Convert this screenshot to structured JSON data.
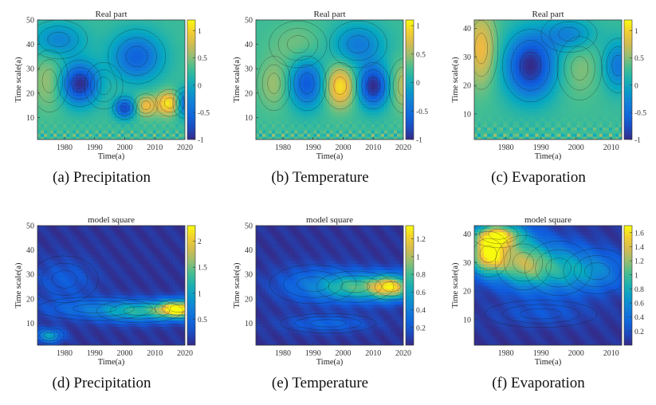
{
  "chart_data": [
    {
      "type": "heatmap",
      "title": "Real part",
      "xlabel": "Time(a)",
      "ylabel": "Time scale(a)",
      "caption": "(a) Precipitation",
      "xlim": [
        1971,
        2020
      ],
      "ylim": [
        1,
        50
      ],
      "xticks": [
        "1980",
        "1990",
        "2000",
        "2010",
        "2020"
      ],
      "yticks": [
        "10",
        "20",
        "30",
        "40",
        "50"
      ],
      "colorbar": {
        "min": -1,
        "max": 1.2,
        "ticks": [
          "-1",
          "-0.5",
          "0",
          "0.5",
          "1"
        ]
      },
      "features": [
        {
          "x": 1985,
          "y": 24,
          "value": -1.0,
          "sx": 4.5,
          "sy": 6
        },
        {
          "x": 1975,
          "y": 25,
          "value": 0.6,
          "sx": 4,
          "sy": 8
        },
        {
          "x": 1993,
          "y": 23,
          "value": 0.3,
          "sx": 4,
          "sy": 6
        },
        {
          "x": 2000,
          "y": 14,
          "value": -0.8,
          "sx": 2.5,
          "sy": 3
        },
        {
          "x": 2007,
          "y": 15,
          "value": 0.9,
          "sx": 2.5,
          "sy": 3
        },
        {
          "x": 2015,
          "y": 16,
          "value": 1.2,
          "sx": 3,
          "sy": 3.5
        },
        {
          "x": 2020,
          "y": 16,
          "value": -0.7,
          "sx": 2.5,
          "sy": 4
        },
        {
          "x": 2004,
          "y": 35,
          "value": -0.6,
          "sx": 6,
          "sy": 7
        },
        {
          "x": 1978,
          "y": 42,
          "value": -0.3,
          "sx": 6,
          "sy": 5
        }
      ]
    },
    {
      "type": "heatmap",
      "title": "Real part",
      "xlabel": "Time(a)",
      "ylabel": "Time scale(a)",
      "caption": "(b) Temperature",
      "xlim": [
        1971,
        2020
      ],
      "ylim": [
        1,
        50
      ],
      "xticks": [
        "1980",
        "1990",
        "2000",
        "2010",
        "2020"
      ],
      "yticks": [
        "10",
        "20",
        "30",
        "40",
        "50"
      ],
      "colorbar": {
        "min": -1,
        "max": 1.1,
        "ticks": [
          "-1",
          "-0.5",
          "0",
          "0.5",
          "1"
        ]
      },
      "features": [
        {
          "x": 2010,
          "y": 23,
          "value": -1.0,
          "sx": 3.5,
          "sy": 6
        },
        {
          "x": 1999,
          "y": 23,
          "value": 1.0,
          "sx": 3.5,
          "sy": 6
        },
        {
          "x": 1988,
          "y": 24,
          "value": -0.7,
          "sx": 4,
          "sy": 7
        },
        {
          "x": 1977,
          "y": 24,
          "value": 0.5,
          "sx": 3.5,
          "sy": 7
        },
        {
          "x": 2020,
          "y": 23,
          "value": 0.6,
          "sx": 3,
          "sy": 7
        },
        {
          "x": 2005,
          "y": 40,
          "value": -0.4,
          "sx": 6,
          "sy": 6
        },
        {
          "x": 1985,
          "y": 40,
          "value": 0.4,
          "sx": 6,
          "sy": 6
        }
      ]
    },
    {
      "type": "heatmap",
      "title": "Real part",
      "xlabel": "Time(a)",
      "ylabel": "Time scale(a)",
      "caption": "(c) Evaporation",
      "xlim": [
        1971,
        2013
      ],
      "ylim": [
        1,
        43
      ],
      "xticks": [
        "1980",
        "1990",
        "2000",
        "2010"
      ],
      "yticks": [
        "10",
        "20",
        "30",
        "40"
      ],
      "colorbar": {
        "min": -1,
        "max": 1.2,
        "ticks": [
          "-1",
          "-0.5",
          "0",
          "0.5",
          "1"
        ]
      },
      "features": [
        {
          "x": 1987,
          "y": 27,
          "value": -1.0,
          "sx": 5,
          "sy": 8
        },
        {
          "x": 1973,
          "y": 33,
          "value": 0.9,
          "sx": 3,
          "sy": 9
        },
        {
          "x": 2001,
          "y": 26,
          "value": 0.5,
          "sx": 4,
          "sy": 7
        },
        {
          "x": 2012,
          "y": 27,
          "value": -0.4,
          "sx": 3,
          "sy": 6
        },
        {
          "x": 1998,
          "y": 38,
          "value": -0.3,
          "sx": 5,
          "sy": 4
        }
      ]
    },
    {
      "type": "heatmap",
      "title": "model square",
      "xlabel": "Time(a)",
      "ylabel": "Time scale(a)",
      "caption": "(d) Precipitation",
      "xlim": [
        1971,
        2020
      ],
      "ylim": [
        1,
        50
      ],
      "xticks": [
        "1980",
        "1990",
        "2000",
        "2010",
        "2020"
      ],
      "yticks": [
        "10",
        "20",
        "30",
        "40",
        "50"
      ],
      "colorbar": {
        "min": 0,
        "max": 2.3,
        "ticks": [
          "0.5",
          "1",
          "1.5",
          "2"
        ]
      },
      "features": [
        {
          "x": 2018,
          "y": 16,
          "value": 2.2,
          "sx": 5,
          "sy": 2.5
        },
        {
          "x": 2005,
          "y": 15,
          "value": 1.0,
          "sx": 9,
          "sy": 3
        },
        {
          "x": 1990,
          "y": 16,
          "value": 0.5,
          "sx": 12,
          "sy": 3
        },
        {
          "x": 1975,
          "y": 5,
          "value": 1.0,
          "sx": 3,
          "sy": 2
        },
        {
          "x": 1980,
          "y": 28,
          "value": 0.35,
          "sx": 7,
          "sy": 6
        }
      ]
    },
    {
      "type": "heatmap",
      "title": "model square",
      "xlabel": "Time(a)",
      "ylabel": "Time scale(a)",
      "caption": "(e) Temperature",
      "xlim": [
        1971,
        2020
      ],
      "ylim": [
        1,
        50
      ],
      "xticks": [
        "1980",
        "1990",
        "2000",
        "2010",
        "2020"
      ],
      "yticks": [
        "10",
        "20",
        "30",
        "40",
        "50"
      ],
      "colorbar": {
        "min": 0,
        "max": 1.35,
        "ticks": [
          "0.2",
          "0.4",
          "0.6",
          "0.8",
          "1",
          "1.2"
        ]
      },
      "features": [
        {
          "x": 2016,
          "y": 25,
          "value": 1.1,
          "sx": 5,
          "sy": 3.5
        },
        {
          "x": 2004,
          "y": 25,
          "value": 0.7,
          "sx": 8,
          "sy": 4
        },
        {
          "x": 1990,
          "y": 26,
          "value": 0.3,
          "sx": 9,
          "sy": 5
        },
        {
          "x": 1995,
          "y": 10,
          "value": 0.25,
          "sx": 10,
          "sy": 2.5
        }
      ]
    },
    {
      "type": "heatmap",
      "title": "model square",
      "xlabel": "Time(a)",
      "ylabel": "Time scale(a)",
      "caption": "(f) Evaporation",
      "xlim": [
        1971,
        2013
      ],
      "ylim": [
        1,
        43
      ],
      "xticks": [
        "1980",
        "1990",
        "2000",
        "2010"
      ],
      "yticks": [
        "10",
        "20",
        "30",
        "40"
      ],
      "colorbar": {
        "min": 0,
        "max": 1.7,
        "ticks": [
          "0.2",
          "0.4",
          "0.6",
          "0.8",
          "1",
          "1.2",
          "1.4",
          "1.6"
        ]
      },
      "features": [
        {
          "x": 1975,
          "y": 33,
          "value": 1.6,
          "sx": 4,
          "sy": 5
        },
        {
          "x": 1985,
          "y": 30,
          "value": 1.1,
          "sx": 5,
          "sy": 6
        },
        {
          "x": 1995,
          "y": 28,
          "value": 0.7,
          "sx": 6,
          "sy": 6
        },
        {
          "x": 2006,
          "y": 27,
          "value": 0.5,
          "sx": 6,
          "sy": 5
        },
        {
          "x": 1978,
          "y": 40,
          "value": 1.2,
          "sx": 5,
          "sy": 3
        },
        {
          "x": 1990,
          "y": 12,
          "value": 0.2,
          "sx": 10,
          "sy": 3
        }
      ]
    }
  ]
}
